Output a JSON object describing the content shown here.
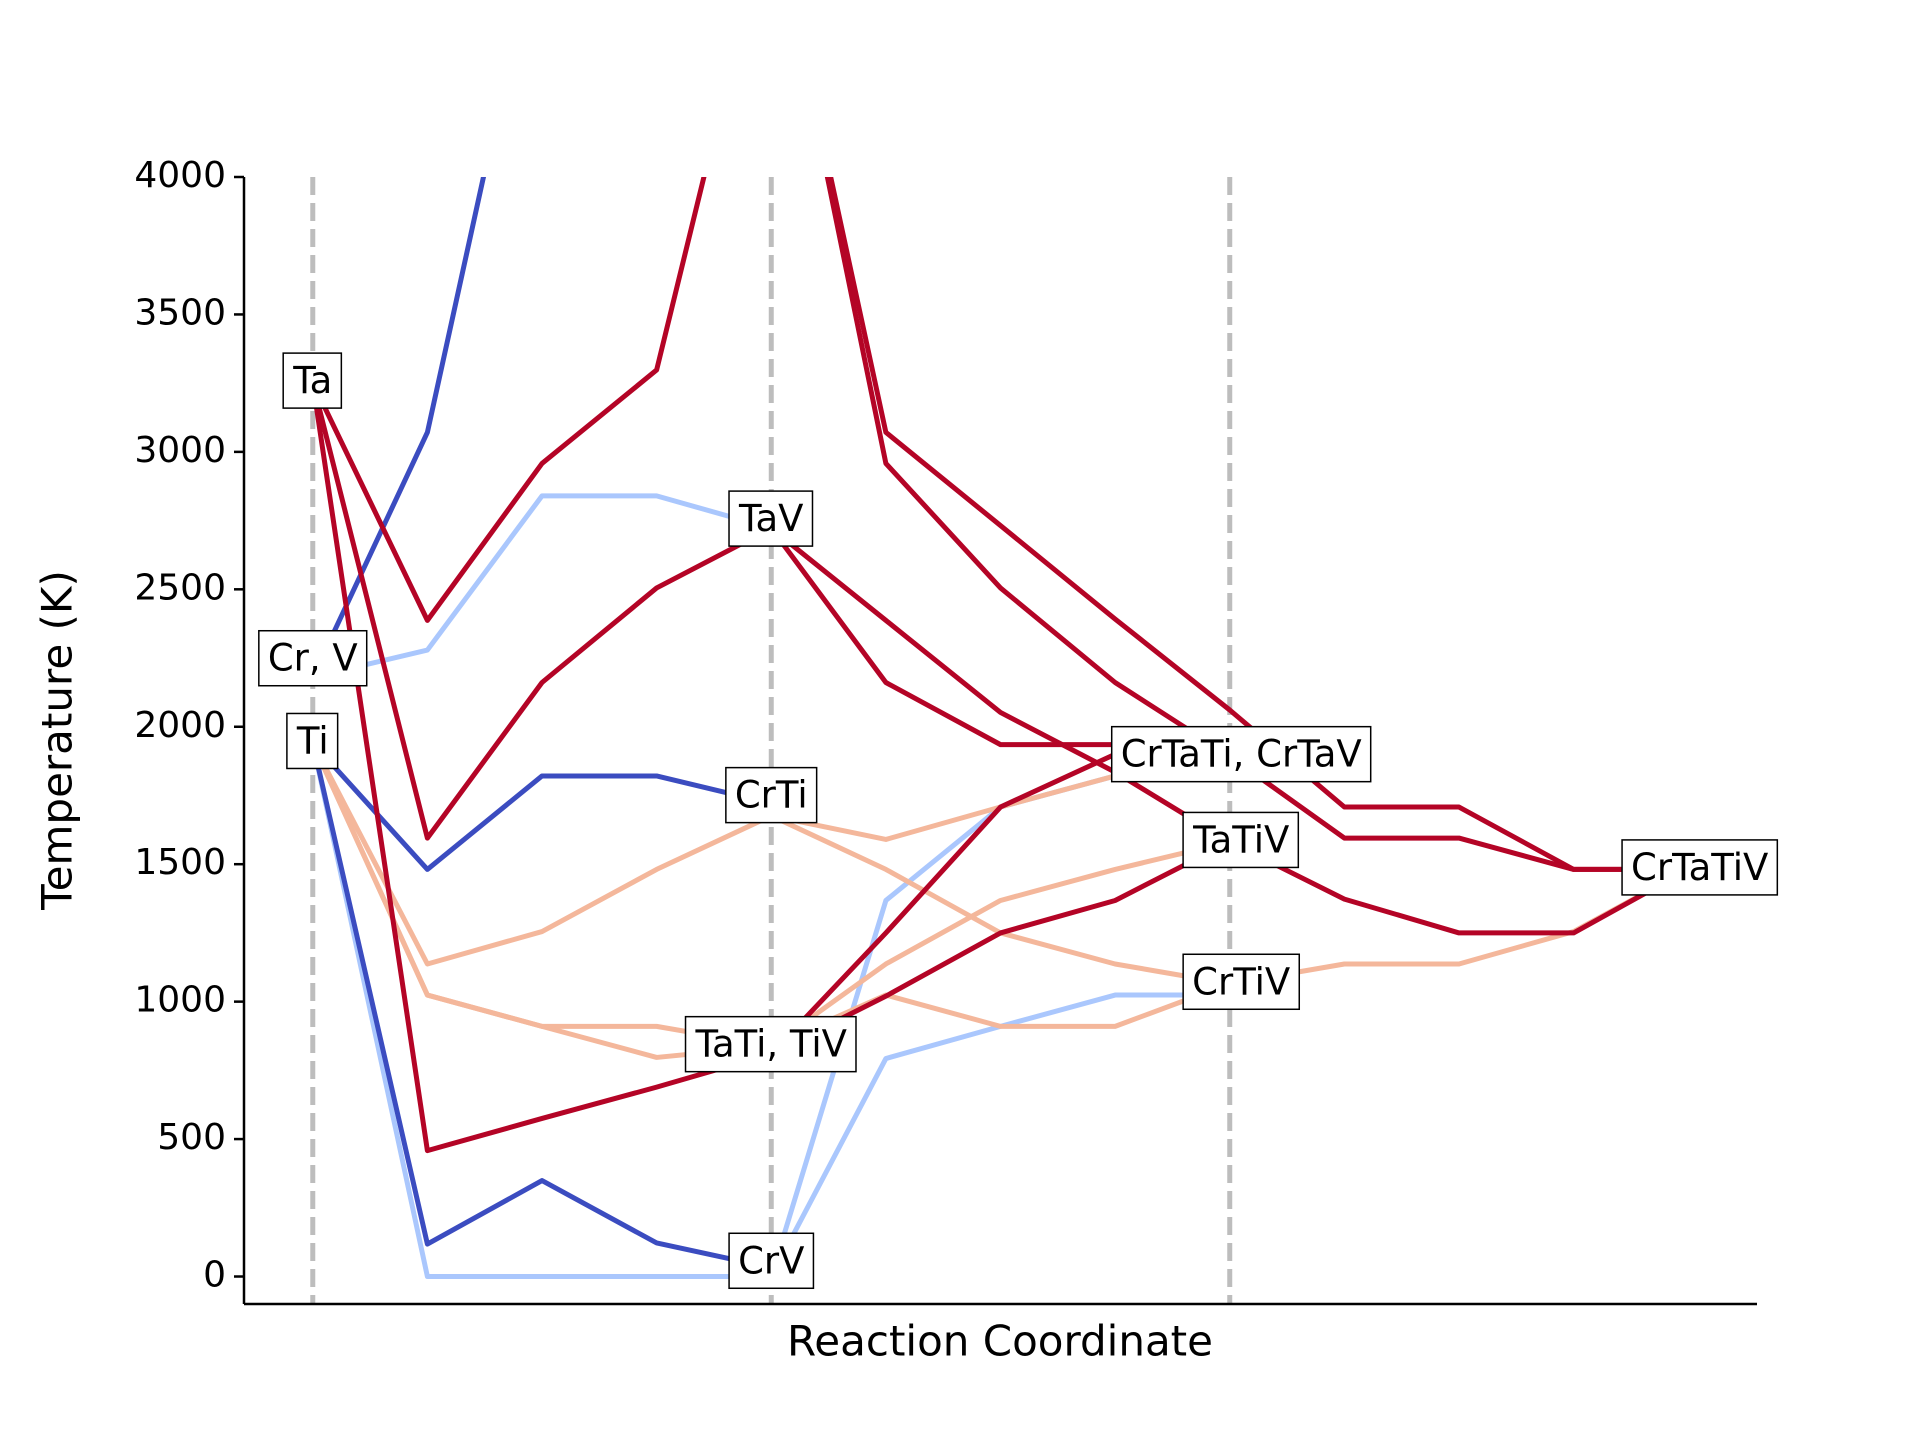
{
  "chart_data": {
    "type": "line",
    "xlabel": "Reaction Coordinate",
    "ylabel": "Temperature (K)",
    "xlim": [
      -0.6,
      12.6
    ],
    "ylim": [
      -100,
      4000
    ],
    "yticks": [
      0,
      500,
      1000,
      1500,
      2000,
      2500,
      3000,
      3500,
      4000
    ],
    "vlines": [
      0,
      4,
      8
    ],
    "series": [
      {
        "color": "#aac7fd",
        "x": [
          0,
          1,
          2,
          3,
          4
        ],
        "values": [
          2180,
          2279,
          2840,
          2840,
          2722
        ]
      },
      {
        "color": "#aac7fd",
        "x": [
          0,
          1,
          2,
          3,
          4
        ],
        "values": [
          1941,
          0,
          0,
          0,
          0
        ]
      },
      {
        "color": "#aac7fd",
        "x": [
          4,
          5,
          6,
          7,
          8
        ],
        "values": [
          0,
          1368,
          1708,
          1821,
          1893
        ]
      },
      {
        "color": "#aac7fd",
        "x": [
          4,
          5,
          6,
          7,
          8
        ],
        "values": [
          0,
          793,
          910,
          1024,
          1024
        ]
      },
      {
        "color": "#f4b79b",
        "x": [
          0,
          1,
          2,
          3,
          4
        ],
        "values": [
          1941,
          1137,
          1255,
          1481,
          1676
        ]
      },
      {
        "color": "#f4b79b",
        "x": [
          0,
          1,
          2,
          3,
          4
        ],
        "values": [
          1941,
          1024,
          910,
          910,
          838
        ]
      },
      {
        "color": "#f4b79b",
        "x": [
          0,
          1,
          2,
          3,
          4
        ],
        "values": [
          1941,
          1024,
          910,
          797,
          838
        ]
      },
      {
        "color": "#f4b79b",
        "x": [
          4,
          5,
          6,
          7,
          8
        ],
        "values": [
          1676,
          1590,
          1708,
          1821,
          1893
        ]
      },
      {
        "color": "#f4b79b",
        "x": [
          4,
          5,
          6,
          7,
          8
        ],
        "values": [
          1676,
          1481,
          1250,
          1137,
          1065
        ]
      },
      {
        "color": "#f4b79b",
        "x": [
          4,
          5,
          6,
          7,
          8
        ],
        "values": [
          838,
          1137,
          1368,
          1481,
          1581
        ]
      },
      {
        "color": "#f4b79b",
        "x": [
          4,
          5,
          6,
          7,
          8
        ],
        "values": [
          838,
          1024,
          910,
          910,
          1065
        ]
      },
      {
        "color": "#f4b79b",
        "x": [
          8,
          9,
          10,
          11,
          12
        ],
        "values": [
          1065,
          1137,
          1137,
          1255,
          1481
        ]
      },
      {
        "color": "#3b4cc0",
        "x": [
          0,
          1,
          2
        ],
        "values": [
          2180,
          3071,
          4970
        ]
      },
      {
        "color": "#3b4cc0",
        "x": [
          0,
          1,
          2,
          3,
          4
        ],
        "values": [
          1941,
          1481,
          1821,
          1821,
          1721
        ]
      },
      {
        "color": "#3b4cc0",
        "x": [
          0,
          1,
          2,
          3,
          4
        ],
        "values": [
          1941,
          118,
          349,
          122,
          32
        ]
      },
      {
        "color": "#b40426",
        "x": [
          0,
          1,
          2,
          3,
          4
        ],
        "values": [
          3252,
          2387,
          2958,
          3298,
          5000
        ]
      },
      {
        "color": "#b40426",
        "x": [
          0,
          1,
          2,
          3,
          4
        ],
        "values": [
          3252,
          1595,
          2161,
          2505,
          2722
        ]
      },
      {
        "color": "#b40426",
        "x": [
          0,
          1,
          2,
          3,
          4
        ],
        "values": [
          3252,
          458,
          575,
          689,
          810
        ]
      },
      {
        "color": "#b40426",
        "x": [
          4,
          5,
          6,
          7,
          8,
          9,
          10,
          11,
          12
        ],
        "values": [
          5000,
          3071,
          2732,
          2392,
          2061,
          1708,
          1708,
          1481,
          1481
        ]
      },
      {
        "color": "#b40426",
        "x": [
          4,
          5,
          6,
          7,
          8,
          9,
          10,
          11,
          12
        ],
        "values": [
          5000,
          2958,
          2505,
          2161,
          1893,
          1595,
          1595,
          1481,
          1481
        ]
      },
      {
        "color": "#b40426",
        "x": [
          4,
          5,
          6,
          7,
          8,
          9,
          10,
          11,
          12
        ],
        "values": [
          2722,
          2387,
          2052,
          1835,
          1581,
          1373,
          1250,
          1250,
          1481
        ]
      },
      {
        "color": "#b40426",
        "x": [
          4,
          5,
          6,
          7,
          8
        ],
        "values": [
          2722,
          2161,
          1935,
          1935,
          1893
        ]
      },
      {
        "color": "#b40426",
        "x": [
          4,
          5,
          6,
          7,
          8
        ],
        "values": [
          810,
          1020,
          1250,
          1368,
          1581
        ]
      },
      {
        "color": "#b40426",
        "x": [
          4,
          5,
          6,
          7,
          8
        ],
        "values": [
          810,
          1250,
          1708,
          1900,
          1893
        ]
      }
    ],
    "annotations": [
      {
        "text": "Ta",
        "x": 0,
        "y": 3252
      },
      {
        "text": "Cr, V",
        "x": 0,
        "y": 2242
      },
      {
        "text": "Ti",
        "x": 0,
        "y": 1941
      },
      {
        "text": "TaV",
        "x": 4,
        "y": 2750
      },
      {
        "text": "CrTi",
        "x": 4,
        "y": 1744
      },
      {
        "text": "CrV",
        "x": 4,
        "y": 50
      },
      {
        "text": "TaTi, TiV",
        "x": 4,
        "y": 838
      },
      {
        "text": "CrTaTi, CrTaV",
        "x": 8.1,
        "y": 1893
      },
      {
        "text": "TaTiV",
        "x": 8.1,
        "y": 1581
      },
      {
        "text": "CrTiV",
        "x": 8.1,
        "y": 1065
      },
      {
        "text": "CrTaTiV",
        "x": 12.1,
        "y": 1481
      }
    ]
  }
}
